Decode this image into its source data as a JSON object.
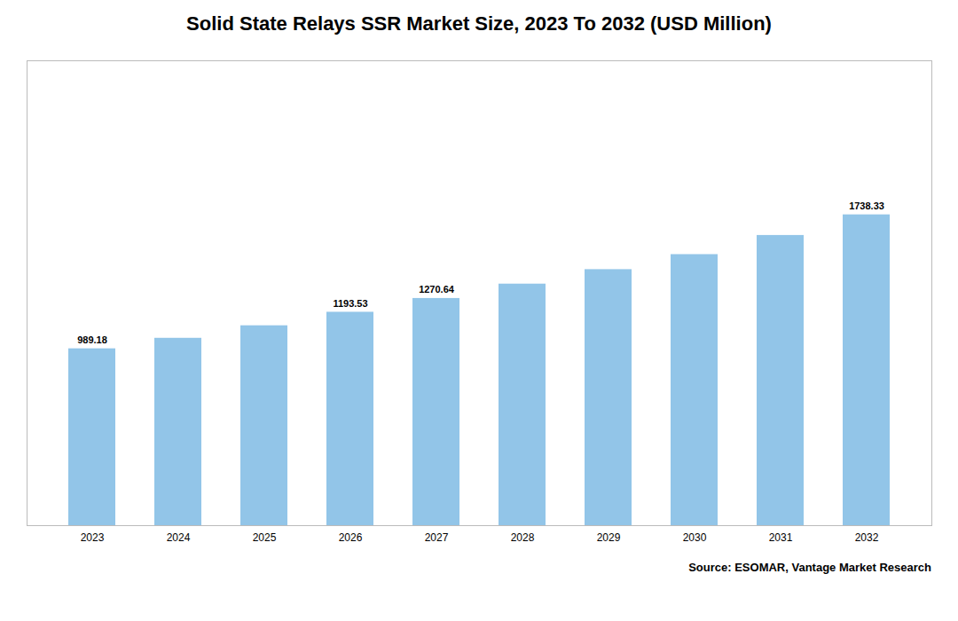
{
  "chart_data": {
    "type": "bar",
    "title": "Solid State Relays SSR Market Size, 2023 To 2032 (USD Million)",
    "categories": [
      "2023",
      "2024",
      "2025",
      "2026",
      "2027",
      "2028",
      "2029",
      "2030",
      "2031",
      "2032"
    ],
    "values": [
      989.18,
      1048.0,
      1118.0,
      1193.53,
      1270.64,
      1351.0,
      1432.0,
      1516.0,
      1623.0,
      1738.33
    ],
    "value_labels": [
      "989.18",
      null,
      null,
      "1193.53",
      "1270.64",
      null,
      null,
      null,
      null,
      "1738.33"
    ],
    "data_labels": true,
    "color": "#92C5E8",
    "ylim": [
      0,
      2600
    ],
    "tick_labels": "x",
    "source": "Source: ESOMAR, Vantage Market Research"
  }
}
